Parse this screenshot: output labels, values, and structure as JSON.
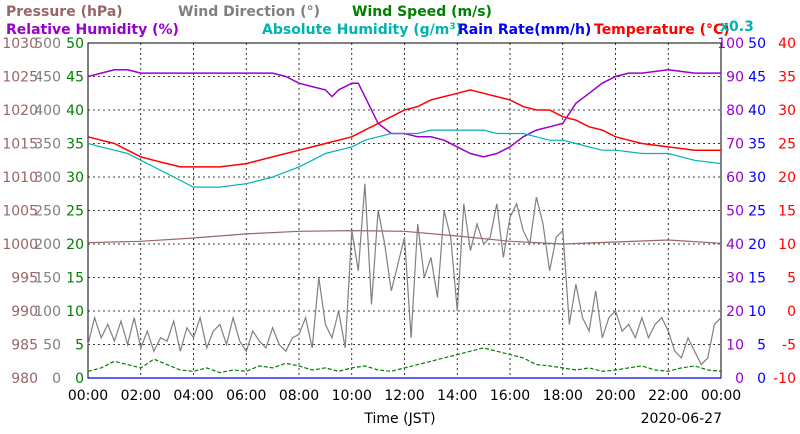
{
  "chart_data": {
    "type": "line",
    "legend": {
      "row1": [
        {
          "text": "Pressure (hPa)",
          "color": "#996666"
        },
        {
          "text": "Wind Direction (°)",
          "color": "#808080"
        },
        {
          "text": "Wind Speed (m/s)",
          "color": "#008000"
        }
      ],
      "row2": [
        {
          "text": "Relative Humidity (%)",
          "color": "#9900cc"
        },
        {
          "text": "Absolute Humidity (g/m",
          "sup": "3",
          "close": ")",
          "color": "#00b3b3"
        },
        {
          "text": "Rain Rate(mm/h)",
          "color": "#0000ff"
        },
        {
          "text": "Temperature (°C)",
          "color": "#ff0000"
        }
      ],
      "rain_scale": {
        "text": "x0.3",
        "color": "#00b3b3"
      }
    },
    "xlabel": "Time (JST)",
    "date": "2020-06-27",
    "x_ticks": [
      "00:00",
      "02:00",
      "04:00",
      "06:00",
      "08:00",
      "10:00",
      "12:00",
      "14:00",
      "16:00",
      "18:00",
      "20:00",
      "22:00",
      "00:00"
    ],
    "x_range_hours": [
      0,
      24
    ],
    "axes": {
      "pressure": {
        "color": "#996666",
        "range": [
          980,
          1030
        ],
        "ticks": [
          "1030",
          "1025",
          "1020",
          "1015",
          "1010",
          "1005",
          "1000",
          "995",
          "990",
          "985",
          "980"
        ]
      },
      "wind_direction": {
        "color": "#808080",
        "range": [
          0,
          500
        ],
        "ticks": [
          "500",
          "450",
          "400",
          "350",
          "300",
          "250",
          "200",
          "150",
          "100",
          "50",
          "0"
        ]
      },
      "wind_speed": {
        "color": "#008000",
        "range": [
          0,
          50
        ],
        "ticks": [
          "50",
          "45",
          "40",
          "35",
          "30",
          "25",
          "20",
          "15",
          "10",
          "5",
          "0"
        ]
      },
      "humidity": {
        "color": "#9900cc",
        "range": [
          0,
          100
        ],
        "ticks": [
          "100",
          "90",
          "80",
          "70",
          "60",
          "50",
          "40",
          "30",
          "20",
          "10",
          "0"
        ]
      },
      "rain_rate": {
        "color": "#0000ff",
        "range": [
          0,
          50
        ],
        "ticks": [
          "50",
          "45",
          "40",
          "35",
          "30",
          "25",
          "20",
          "15",
          "10",
          "5",
          "0"
        ]
      },
      "temperature": {
        "color": "#ff0000",
        "range": [
          -10,
          40
        ],
        "ticks": [
          "40",
          "35",
          "30",
          "25",
          "20",
          "15",
          "10",
          "5",
          "0",
          "-5",
          "-10"
        ]
      }
    },
    "grid": true,
    "series": [
      {
        "name": "Relative Humidity (%)",
        "axis": "humidity",
        "color": "#9900cc",
        "x": [
          0,
          0.5,
          1,
          1.5,
          2,
          3,
          4,
          5,
          6,
          7,
          7.5,
          8,
          8.5,
          9,
          9.25,
          9.5,
          9.75,
          10,
          10.25,
          10.5,
          11,
          11.5,
          12,
          12.5,
          13,
          13.5,
          14,
          14.5,
          15,
          15.5,
          16,
          16.5,
          17,
          17.5,
          18,
          18.5,
          19,
          19.5,
          20,
          20.5,
          21,
          22,
          23,
          24
        ],
        "y": [
          90,
          91,
          92,
          92,
          91,
          91,
          91,
          91,
          91,
          91,
          90,
          88,
          87,
          86,
          84,
          86,
          87,
          88,
          88,
          84,
          76,
          73,
          73,
          72,
          72,
          71,
          69,
          67,
          66,
          67,
          69,
          72,
          74,
          75,
          76,
          82,
          85,
          88,
          90,
          91,
          91,
          92,
          91,
          91
        ]
      },
      {
        "name": "Temperature (°C)",
        "axis": "temperature",
        "color": "#ff0000",
        "x": [
          0,
          0.5,
          1,
          1.5,
          2,
          2.5,
          3,
          3.5,
          4,
          5,
          6,
          7,
          8,
          8.5,
          9,
          9.5,
          10,
          10.5,
          11,
          11.5,
          12,
          12.5,
          13,
          13.5,
          14,
          14.5,
          15,
          15.5,
          16,
          16.5,
          17,
          17.5,
          18,
          18.5,
          19,
          19.5,
          20,
          20.5,
          21,
          22,
          23,
          24
        ],
        "y": [
          26,
          25.5,
          25,
          24,
          23,
          22.5,
          22,
          21.5,
          21.5,
          21.5,
          22,
          23,
          24,
          24.5,
          25,
          25.5,
          26,
          27,
          28,
          29,
          30,
          30.5,
          31.5,
          32,
          32.5,
          33,
          32.5,
          32,
          31.5,
          30.5,
          30,
          30,
          29,
          28.5,
          27.5,
          27,
          26,
          25.5,
          25,
          24.5,
          24,
          24
        ]
      },
      {
        "name": "Absolute Humidity (g/m3)",
        "axis": "humidity",
        "color": "#00b3b3",
        "x": [
          0,
          0.5,
          1,
          1.5,
          2,
          2.5,
          3,
          3.5,
          4,
          5,
          6,
          7,
          8,
          8.5,
          9,
          9.5,
          10,
          10.5,
          11,
          11.5,
          12,
          12.5,
          13,
          13.5,
          14,
          14.5,
          15,
          15.5,
          16,
          16.5,
          17,
          17.5,
          18,
          18.5,
          19,
          19.5,
          20,
          21,
          22,
          23,
          24
        ],
        "y": [
          70,
          69,
          68,
          67,
          65,
          63,
          61,
          59,
          57,
          57,
          58,
          60,
          63,
          65,
          67,
          68,
          69,
          71,
          72,
          73,
          73,
          73,
          74,
          74,
          74,
          74,
          74,
          73,
          73,
          73,
          72,
          71,
          71,
          70,
          69,
          68,
          68,
          67,
          67,
          65,
          64
        ]
      },
      {
        "name": "Pressure (hPa)",
        "axis": "pressure",
        "color": "#996666",
        "x": [
          0,
          2,
          4,
          6,
          8,
          10,
          12,
          14,
          16,
          18,
          20,
          22,
          24
        ],
        "y": [
          1000.2,
          1000.4,
          1000.9,
          1001.5,
          1001.9,
          1002.0,
          1001.9,
          1001.2,
          1000.4,
          1000.0,
          1000.3,
          1000.6,
          1000.1
        ]
      },
      {
        "name": "Wind Direction (°)",
        "axis": "wind_direction",
        "color": "#808080",
        "x": [
          0,
          0.25,
          0.5,
          0.75,
          1,
          1.25,
          1.5,
          1.75,
          2,
          2.25,
          2.5,
          2.75,
          3,
          3.25,
          3.5,
          3.75,
          4,
          4.25,
          4.5,
          4.75,
          5,
          5.25,
          5.5,
          5.75,
          6,
          6.25,
          6.5,
          6.75,
          7,
          7.25,
          7.5,
          7.75,
          8,
          8.25,
          8.5,
          8.75,
          9,
          9.25,
          9.5,
          9.75,
          10,
          10.25,
          10.5,
          10.75,
          11,
          11.25,
          11.5,
          11.75,
          12,
          12.25,
          12.5,
          12.75,
          13,
          13.25,
          13.5,
          13.75,
          14,
          14.25,
          14.5,
          14.75,
          15,
          15.25,
          15.5,
          15.75,
          16,
          16.25,
          16.5,
          16.75,
          17,
          17.25,
          17.5,
          17.75,
          18,
          18.25,
          18.5,
          18.75,
          19,
          19.25,
          19.5,
          19.75,
          20,
          20.25,
          20.5,
          20.75,
          21,
          21.25,
          21.5,
          21.75,
          22,
          22.25,
          22.5,
          22.75,
          23,
          23.25,
          23.5,
          23.75,
          24
        ],
        "y": [
          50,
          90,
          60,
          80,
          55,
          85,
          50,
          90,
          45,
          70,
          40,
          60,
          55,
          85,
          40,
          75,
          60,
          90,
          45,
          70,
          80,
          50,
          90,
          55,
          40,
          70,
          55,
          45,
          75,
          50,
          40,
          60,
          65,
          90,
          45,
          150,
          80,
          60,
          100,
          45,
          220,
          160,
          290,
          110,
          250,
          200,
          130,
          170,
          210,
          60,
          230,
          150,
          180,
          120,
          250,
          210,
          100,
          260,
          190,
          230,
          200,
          210,
          260,
          180,
          240,
          260,
          220,
          200,
          270,
          230,
          160,
          210,
          220,
          80,
          140,
          90,
          70,
          130,
          60,
          90,
          100,
          70,
          80,
          60,
          90,
          60,
          80,
          90,
          70,
          40,
          30,
          60,
          40,
          20,
          30,
          80,
          90
        ]
      },
      {
        "name": "Wind Speed (m/s)",
        "axis": "wind_speed",
        "color": "#008000",
        "x": [
          0,
          0.5,
          1,
          1.5,
          2,
          2.5,
          3,
          3.5,
          4,
          4.5,
          5,
          5.5,
          6,
          6.5,
          7,
          7.5,
          8,
          8.5,
          9,
          9.5,
          10,
          10.5,
          11,
          11.5,
          12,
          12.5,
          13,
          13.5,
          14,
          14.5,
          15,
          15.5,
          16,
          16.5,
          17,
          17.5,
          18,
          18.5,
          19,
          19.5,
          20,
          20.5,
          21,
          21.5,
          22,
          22.5,
          23,
          23.5,
          24
        ],
        "y": [
          1.0,
          1.5,
          2.5,
          2.0,
          1.5,
          2.8,
          2.0,
          1.2,
          1.0,
          1.5,
          0.8,
          1.2,
          1.0,
          1.8,
          1.5,
          2.2,
          1.8,
          1.2,
          1.5,
          1.0,
          1.5,
          1.8,
          1.2,
          1.0,
          1.5,
          2.0,
          2.5,
          3.0,
          3.5,
          4.0,
          4.5,
          4.0,
          3.5,
          3.0,
          2.0,
          1.8,
          1.5,
          1.2,
          1.5,
          1.0,
          1.2,
          1.5,
          1.8,
          1.2,
          1.0,
          1.5,
          1.8,
          1.2,
          1.0
        ]
      },
      {
        "name": "Rain Rate(mm/h)",
        "axis": "rain_rate",
        "color": "#0000ff",
        "x": [
          0,
          24
        ],
        "y": [
          0,
          0
        ]
      }
    ]
  }
}
